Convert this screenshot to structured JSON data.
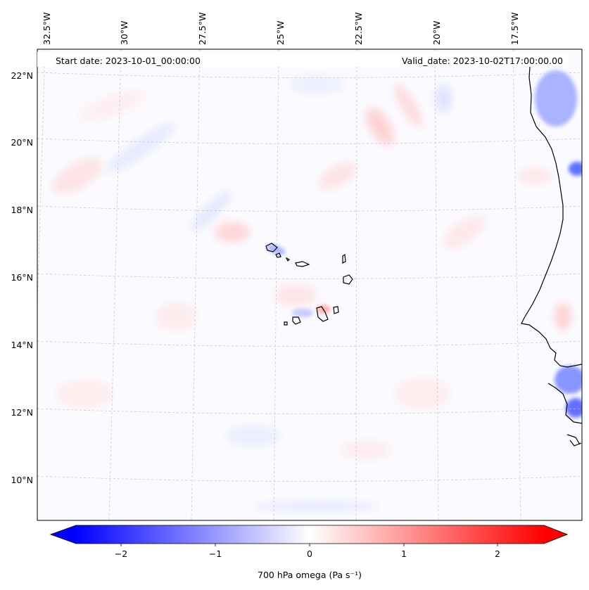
{
  "header": {
    "start_date": "Start date: 2023-10-01_00:00:00",
    "valid_date": "Valid_date: 2023-10-02T17:00:00.00"
  },
  "map": {
    "lon_labels": [
      "32.5°W",
      "30°W",
      "27.5°W",
      "25°W",
      "22.5°W",
      "20°W",
      "17.5°W"
    ],
    "lat_labels": [
      "22°N",
      "20°N",
      "18°N",
      "16°N",
      "14°N",
      "12°N",
      "10°N"
    ],
    "background_color": "#fbfbff",
    "coastline_color": "#000000",
    "gridline_color": "#c8c8c8"
  },
  "colorbar": {
    "ticks": [
      "−2",
      "−1",
      "0",
      "1",
      "2"
    ],
    "label": "700 hPa omega (Pa s⁻¹)",
    "min_color": "#0000ff",
    "mid_color": "#ffffff",
    "max_color": "#ff0000",
    "range": [
      -2.6,
      2.6
    ],
    "extend": "both"
  },
  "chart_data": {
    "type": "heatmap",
    "variable": "700 hPa omega",
    "units": "Pa s⁻¹",
    "value_range": [
      -2.6,
      2.6
    ],
    "colormap": "bwr",
    "extent": {
      "lon": [
        -33,
        -15.5
      ],
      "lat": [
        8.9,
        22.8
      ]
    },
    "colorbar_ticks": [
      -2,
      -1,
      0,
      1,
      2
    ]
  }
}
